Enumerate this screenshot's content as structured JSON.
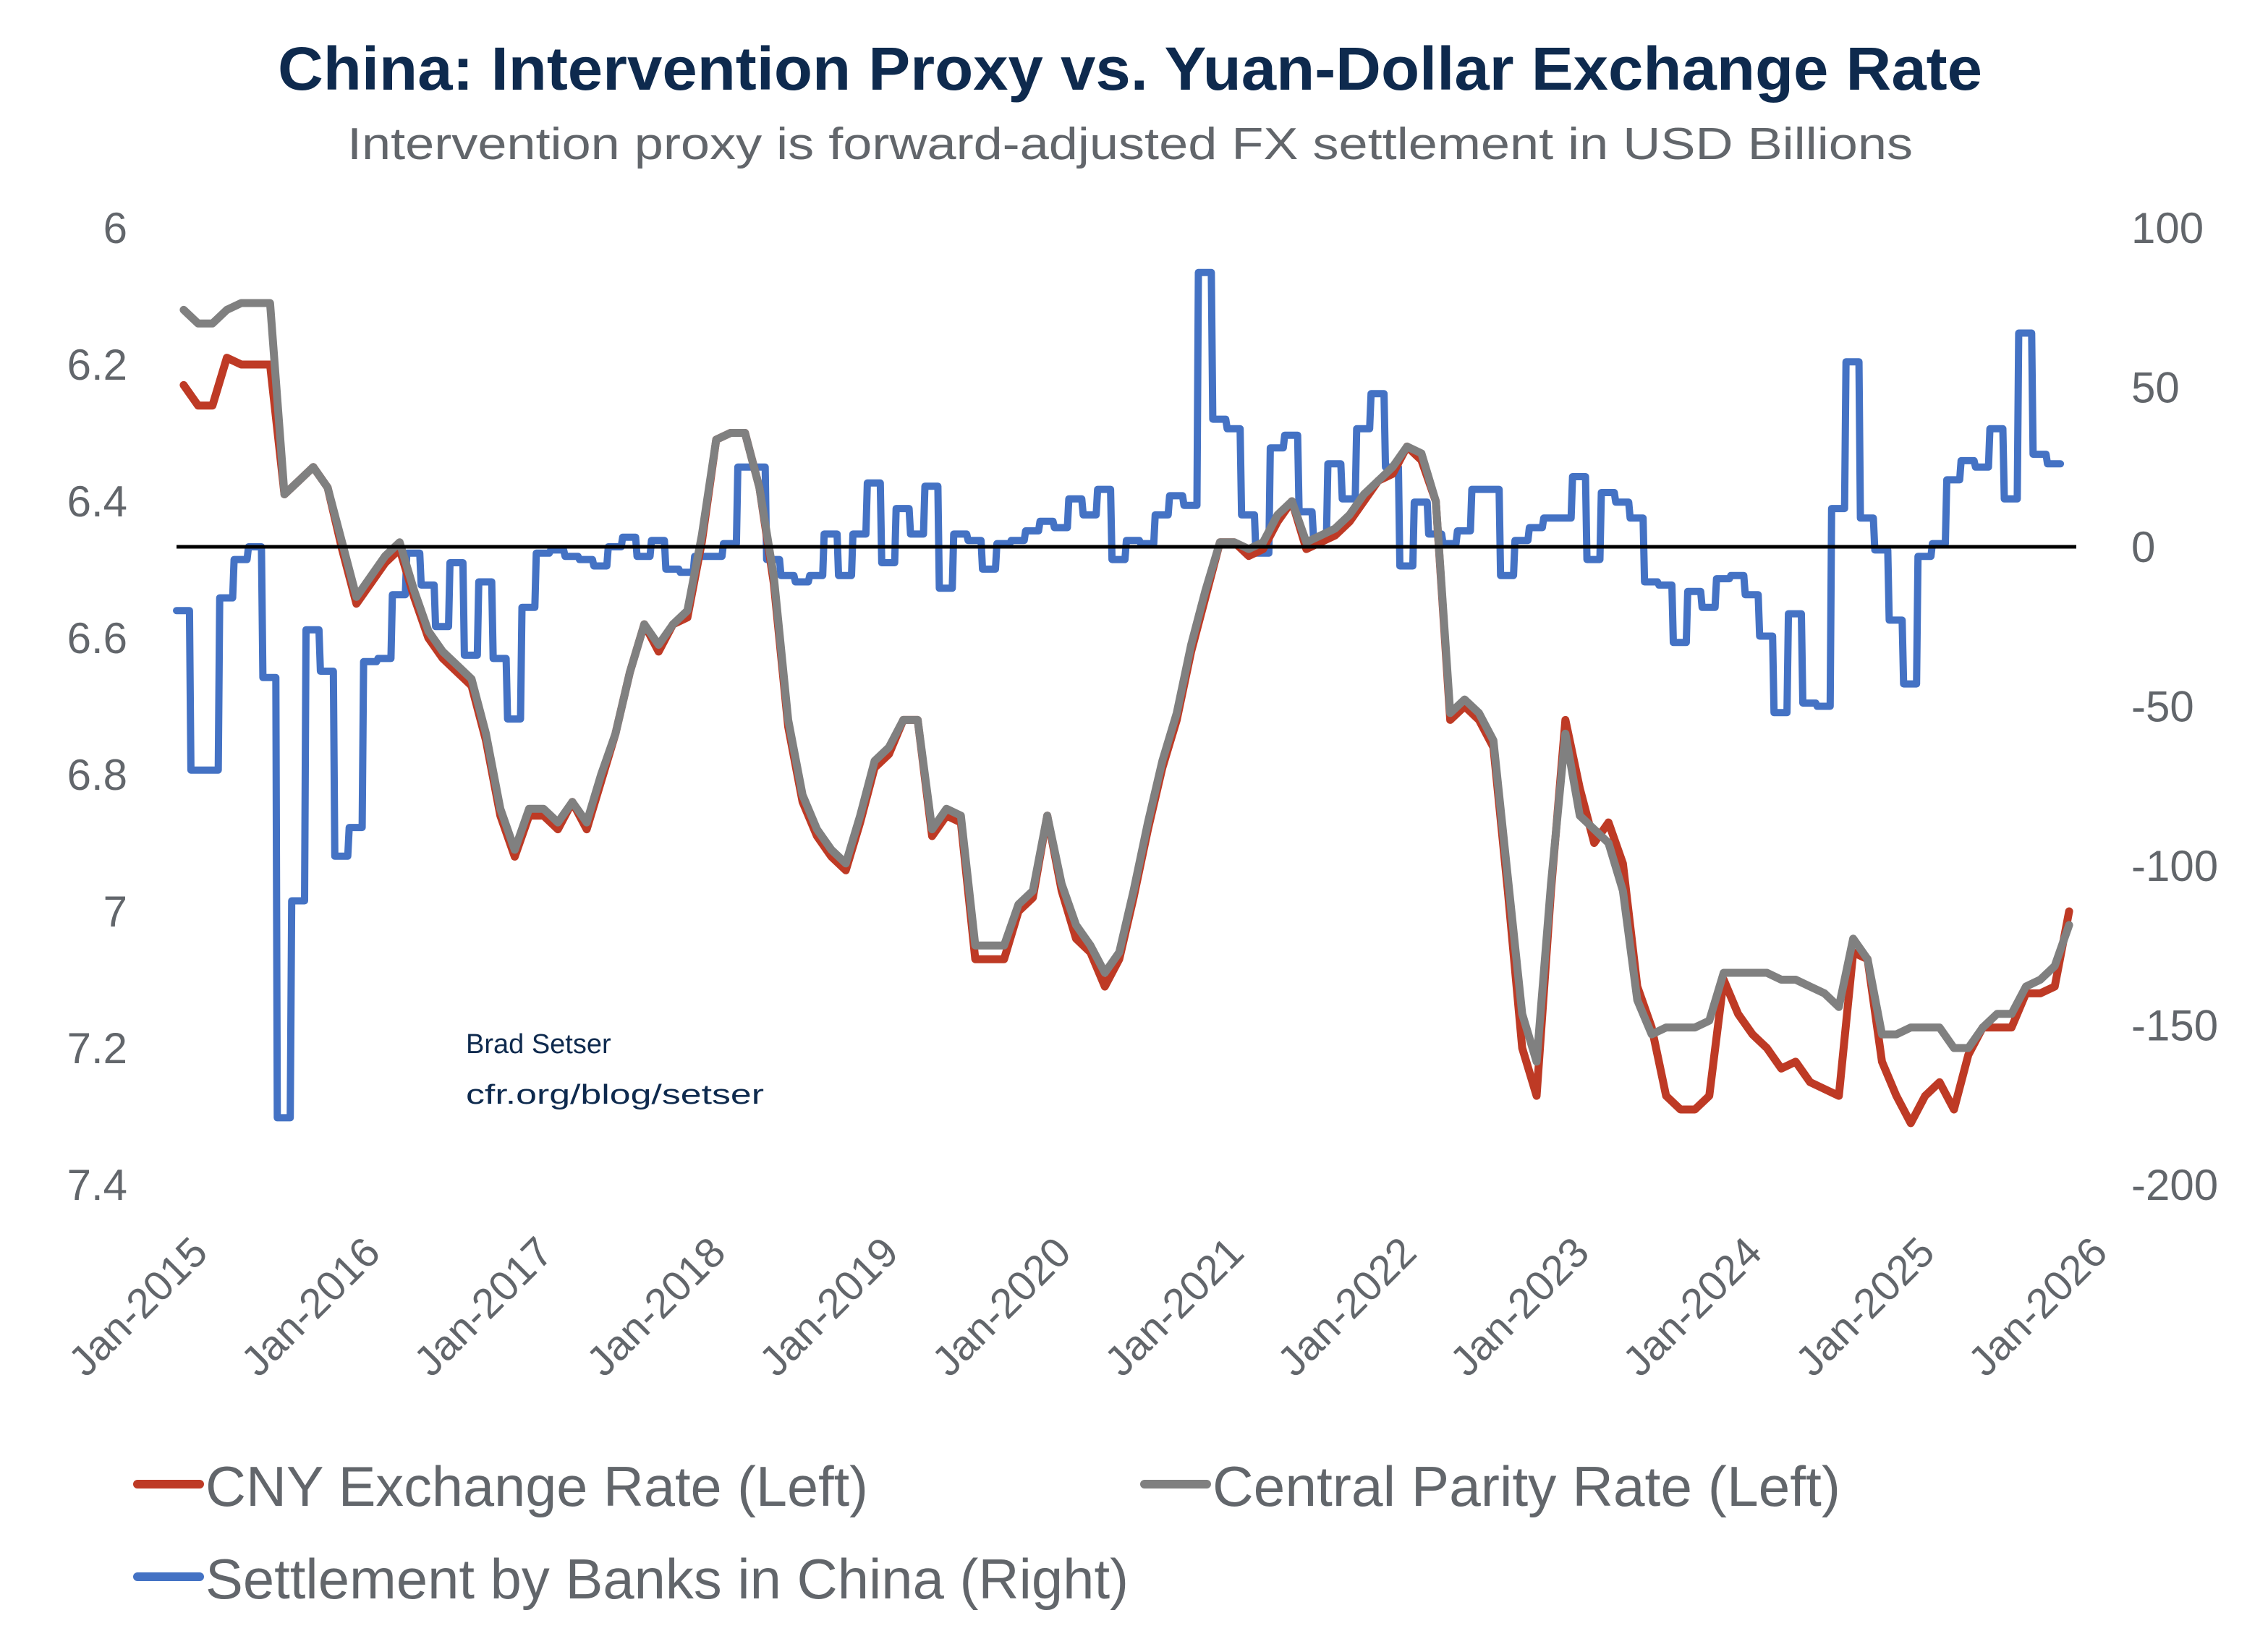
{
  "chart_data": {
    "type": "line",
    "title": "China: Intervention Proxy vs. Yuan-Dollar Exchange Rate",
    "subtitle": "Intervention proxy is forward-adjusted FX settlement in USD Billions",
    "x_start": "2015-01",
    "frequency": "monthly",
    "xlim": [
      "Jan-2015",
      "Jan-2026"
    ],
    "x_tick_labels": [
      "Jan-2015",
      "Jan-2016",
      "Jan-2017",
      "Jan-2018",
      "Jan-2019",
      "Jan-2020",
      "Jan-2021",
      "Jan-2022",
      "Jan-2023",
      "Jan-2024",
      "Jan-2025",
      "Jan-2026"
    ],
    "xlabel": "",
    "y_left": {
      "label": "",
      "ylim": [
        6,
        7.4
      ],
      "inverted": true,
      "ticks": [
        6,
        6.2,
        6.4,
        6.6,
        6.8,
        7,
        7.2,
        7.4
      ],
      "tick_labels": [
        "6",
        "6.2",
        "6.4",
        "6.6",
        "6.8",
        "7",
        "7.2",
        "7.4"
      ]
    },
    "y_right": {
      "label": "",
      "ylim": [
        -200,
        100
      ],
      "ticks": [
        100,
        50,
        0,
        -50,
        -100,
        -150,
        -200
      ],
      "tick_labels": [
        "100",
        "50",
        "0",
        "-50",
        "-100",
        "-150",
        "-200"
      ]
    },
    "reference_line": {
      "axis": "right",
      "value": 0,
      "color": "#000000"
    },
    "grid": false,
    "legend_position": "bottom-left",
    "annotation": {
      "lines": [
        "Brad Setser",
        "cfr.org/blog/setser"
      ],
      "color": "#0E2A4E"
    },
    "series": [
      {
        "name": "CNY Exchange Rate (Left)",
        "axis": "left",
        "color": "#BE3A25",
        "values": [
          6.23,
          6.26,
          6.26,
          6.19,
          6.2,
          6.2,
          6.2,
          6.39,
          6.37,
          6.35,
          6.38,
          6.47,
          6.55,
          6.52,
          6.49,
          6.47,
          6.54,
          6.6,
          6.63,
          6.65,
          6.67,
          6.75,
          6.86,
          6.92,
          6.86,
          6.86,
          6.88,
          6.84,
          6.88,
          6.81,
          6.74,
          6.65,
          6.58,
          6.62,
          6.58,
          6.57,
          6.46,
          6.31,
          6.3,
          6.3,
          6.38,
          6.52,
          6.73,
          6.84,
          6.89,
          6.92,
          6.94,
          6.87,
          6.79,
          6.77,
          6.72,
          6.72,
          6.89,
          6.86,
          6.87,
          7.07,
          7.07,
          7.07,
          7.0,
          6.98,
          6.86,
          6.97,
          7.04,
          7.06,
          7.11,
          7.07,
          6.98,
          6.88,
          6.79,
          6.72,
          6.62,
          6.54,
          6.46,
          6.46,
          6.48,
          6.47,
          6.43,
          6.4,
          6.47,
          6.46,
          6.45,
          6.43,
          6.4,
          6.37,
          6.36,
          6.32,
          6.34,
          6.4,
          6.72,
          6.7,
          6.72,
          6.76,
          6.97,
          7.2,
          7.27,
          6.97,
          6.72,
          6.82,
          6.9,
          6.87,
          6.93,
          7.11,
          7.17,
          7.27,
          7.29,
          7.29,
          7.27,
          7.1,
          7.15,
          7.18,
          7.2,
          7.23,
          7.22,
          7.25,
          7.26,
          7.27,
          7.06,
          7.07,
          7.22,
          7.27,
          7.31,
          7.27,
          7.25,
          7.29,
          7.21,
          7.17,
          7.17,
          7.17,
          7.12,
          7.12,
          7.11,
          7.0
        ]
      },
      {
        "name": "Central Parity Rate (Left)",
        "axis": "left",
        "color": "#808080",
        "values": [
          6.12,
          6.14,
          6.14,
          6.12,
          6.11,
          6.11,
          6.11,
          6.39,
          6.37,
          6.35,
          6.38,
          6.46,
          6.54,
          6.51,
          6.48,
          6.46,
          6.53,
          6.59,
          6.62,
          6.64,
          6.66,
          6.74,
          6.85,
          6.91,
          6.85,
          6.85,
          6.87,
          6.84,
          6.87,
          6.8,
          6.74,
          6.65,
          6.58,
          6.61,
          6.58,
          6.56,
          6.45,
          6.31,
          6.3,
          6.3,
          6.38,
          6.51,
          6.72,
          6.83,
          6.88,
          6.91,
          6.93,
          6.86,
          6.78,
          6.76,
          6.72,
          6.72,
          6.88,
          6.85,
          6.86,
          7.05,
          7.05,
          7.05,
          6.99,
          6.97,
          6.86,
          6.96,
          7.02,
          7.05,
          7.09,
          7.06,
          6.97,
          6.87,
          6.78,
          6.71,
          6.61,
          6.53,
          6.46,
          6.46,
          6.47,
          6.46,
          6.42,
          6.4,
          6.46,
          6.45,
          6.44,
          6.42,
          6.39,
          6.37,
          6.35,
          6.32,
          6.33,
          6.4,
          6.71,
          6.69,
          6.71,
          6.75,
          6.95,
          7.15,
          7.22,
          6.96,
          6.74,
          6.86,
          6.88,
          6.9,
          6.97,
          7.13,
          7.18,
          7.17,
          7.17,
          7.17,
          7.16,
          7.09,
          7.09,
          7.09,
          7.09,
          7.1,
          7.1,
          7.11,
          7.12,
          7.14,
          7.04,
          7.07,
          7.18,
          7.18,
          7.17,
          7.17,
          7.17,
          7.2,
          7.2,
          7.17,
          7.15,
          7.15,
          7.11,
          7.1,
          7.08,
          7.02
        ]
      },
      {
        "name": "Settlement by Banks in China (Right)",
        "axis": "right",
        "style": "step",
        "color": "#4472C4",
        "values": [
          -20,
          -70,
          -70,
          -16,
          -4,
          0,
          -41,
          -179,
          -111,
          -26,
          -39,
          -97,
          -88,
          -36,
          -35,
          -15,
          -2,
          -12,
          -25,
          -5,
          -34,
          -11,
          -35,
          -54,
          -19,
          -2,
          -1,
          -3,
          -4,
          -6,
          0,
          3,
          -3,
          2,
          -7,
          -8,
          -3,
          -3,
          1,
          25,
          25,
          -4,
          -9,
          -11,
          -9,
          4,
          -9,
          4,
          20,
          -5,
          12,
          4,
          19,
          -13,
          4,
          2,
          -7,
          1,
          2,
          5,
          8,
          6,
          15,
          10,
          18,
          -4,
          2,
          1,
          10,
          16,
          13,
          86,
          40,
          37,
          10,
          -2,
          31,
          35,
          11,
          3,
          26,
          15,
          37,
          48,
          25,
          -6,
          14,
          4,
          1,
          5,
          18,
          18,
          -9,
          2,
          6,
          9,
          9,
          22,
          -4,
          17,
          14,
          9,
          -11,
          -12,
          -30,
          -14,
          -19,
          -10,
          -9,
          -15,
          -28,
          -52,
          -21,
          -49,
          -50,
          12,
          58,
          9,
          -1,
          -23,
          -43,
          -3,
          1,
          21,
          27,
          25,
          37,
          15,
          67,
          29,
          26
        ]
      }
    ]
  }
}
